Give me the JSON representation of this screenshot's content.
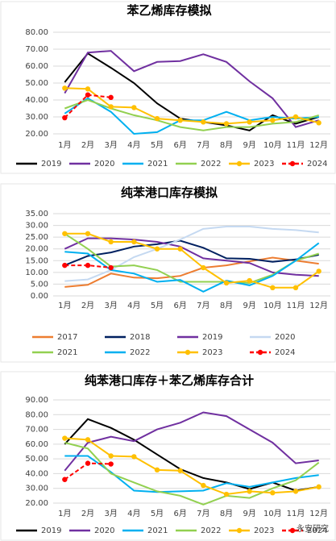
{
  "chart_data": [
    {
      "type": "line",
      "title": "苯乙烯库存模拟",
      "categories": [
        "1月",
        "2月",
        "3月",
        "4月",
        "5月",
        "6月",
        "7月",
        "8月",
        "9月",
        "10月",
        "11月",
        "12月"
      ],
      "ylim": [
        20,
        80
      ],
      "yticks": [
        {
          "value": 20,
          "label": "20.00"
        },
        {
          "value": 30,
          "label": "30.00"
        },
        {
          "value": 40,
          "label": "40.00"
        },
        {
          "value": 50,
          "label": "50.00"
        },
        {
          "value": 60,
          "label": "60.00"
        },
        {
          "value": 70,
          "label": "70.00"
        },
        {
          "value": 80,
          "label": "80.00"
        }
      ],
      "grid": true,
      "series": [
        {
          "name": "2019",
          "color": "#000000",
          "values": [
            50.5,
            67.5,
            59,
            50,
            38,
            29,
            27,
            25,
            22,
            31,
            26,
            30
          ]
        },
        {
          "name": "2020",
          "color": "#7030a0",
          "values": [
            44,
            68,
            69,
            57,
            62.5,
            63,
            67,
            62.5,
            51,
            41,
            24,
            28
          ]
        },
        {
          "name": "2021",
          "color": "#00b0f0",
          "values": [
            32,
            41,
            33,
            20,
            21,
            28,
            28,
            33,
            28,
            30,
            29,
            30
          ]
        },
        {
          "name": "2022",
          "color": "#92d050",
          "values": [
            35,
            40,
            35,
            31,
            28,
            24,
            22,
            24,
            24,
            26,
            27,
            31
          ]
        },
        {
          "name": "2023",
          "color": "#ffc000",
          "marker": "circle",
          "values": [
            47,
            46.5,
            36,
            35.5,
            29,
            28,
            27,
            26,
            27,
            28,
            30,
            26.5
          ]
        },
        {
          "name": "2024",
          "color": "#ff0000",
          "marker": "circle",
          "style": "dashed",
          "values": [
            29.5,
            43,
            41.5,
            null,
            null,
            null,
            null,
            null,
            null,
            null,
            null,
            null
          ]
        }
      ]
    },
    {
      "type": "line",
      "title": "纯苯港口库存模拟",
      "categories": [
        "1月",
        "2月",
        "3月",
        "4月",
        "5月",
        "6月",
        "7月",
        "8月",
        "9月",
        "10月",
        "11月",
        "12月"
      ],
      "ylim": [
        0,
        35
      ],
      "yticks": [
        {
          "value": 0,
          "label": "0.00"
        },
        {
          "value": 5,
          "label": "5.00"
        },
        {
          "value": 10,
          "label": "10.00"
        },
        {
          "value": 15,
          "label": "15.00"
        },
        {
          "value": 20,
          "label": "20.00"
        },
        {
          "value": 25,
          "label": "25.00"
        },
        {
          "value": 30,
          "label": "30.00"
        },
        {
          "value": 35,
          "label": "35.00"
        }
      ],
      "grid": true,
      "series": [
        {
          "name": "2017",
          "color": "#ed7d31",
          "values": [
            3.8,
            4.7,
            9.5,
            7.8,
            7.5,
            8.5,
            12,
            13,
            14.7,
            16.3,
            15,
            13.7
          ]
        },
        {
          "name": "2018",
          "color": "#002060",
          "values": [
            13,
            17,
            18.5,
            21,
            22,
            23.5,
            20.5,
            16,
            15.8,
            14.5,
            15.5,
            17.5
          ]
        },
        {
          "name": "2019",
          "color": "#7030a0",
          "values": [
            20,
            24.5,
            24.5,
            24,
            23,
            21,
            16,
            15,
            14,
            10,
            9,
            8.5
          ]
        },
        {
          "name": "2020",
          "color": "#c5d9f1",
          "values": [
            6.3,
            7,
            11,
            16.5,
            20,
            24,
            28.5,
            29.5,
            29.5,
            28.5,
            28,
            27
          ]
        },
        {
          "name": "2021",
          "color": "#92d050",
          "values": [
            26.5,
            20,
            12.5,
            13,
            11,
            6,
            6,
            6,
            5.5,
            9,
            15,
            18
          ]
        },
        {
          "name": "2022",
          "color": "#00b0f0",
          "values": [
            18.8,
            18,
            11,
            9.5,
            6,
            6.8,
            1.8,
            6.5,
            4.5,
            8.5,
            15,
            22.5
          ]
        },
        {
          "name": "2023",
          "color": "#ffc000",
          "marker": "circle",
          "values": [
            26.5,
            26.5,
            23,
            23,
            20,
            20,
            12,
            5.5,
            6.5,
            3.5,
            3.5,
            10.5
          ]
        },
        {
          "name": "2024",
          "color": "#ff0000",
          "marker": "circle",
          "style": "dashed",
          "values": [
            13,
            13,
            12,
            null,
            null,
            null,
            null,
            null,
            null,
            null,
            null,
            null
          ]
        }
      ]
    },
    {
      "type": "line",
      "title": "纯苯港口库存＋苯乙烯库存合计",
      "categories": [
        "1月",
        "2月",
        "3月",
        "4月",
        "5月",
        "6月",
        "7月",
        "8月",
        "9月",
        "10月",
        "11月",
        "12月"
      ],
      "ylim": [
        20,
        90
      ],
      "yticks": [
        {
          "value": 20,
          "label": "20.00"
        },
        {
          "value": 30,
          "label": "30.00"
        },
        {
          "value": 40,
          "label": "40.00"
        },
        {
          "value": 50,
          "label": "50.00"
        },
        {
          "value": 60,
          "label": "60.00"
        },
        {
          "value": 70,
          "label": "70.00"
        },
        {
          "value": 80,
          "label": "80.00"
        },
        {
          "value": 90,
          "label": "90.00"
        }
      ],
      "grid": true,
      "watermark": "永安研究",
      "series": [
        {
          "name": "2019",
          "color": "#000000",
          "values": [
            60,
            77,
            71,
            63,
            53,
            43,
            37,
            34,
            29.5,
            34,
            28.5,
            31
          ]
        },
        {
          "name": "2020",
          "color": "#7030a0",
          "values": [
            42,
            61,
            65,
            62,
            70,
            74.5,
            81.5,
            79,
            70,
            61,
            47,
            49
          ]
        },
        {
          "name": "2021",
          "color": "#00b0f0",
          "values": [
            52,
            52,
            41,
            28.5,
            27.5,
            28,
            28.5,
            33.5,
            31,
            34,
            37,
            39
          ]
        },
        {
          "name": "2022",
          "color": "#92d050",
          "values": [
            61,
            57,
            40,
            34,
            28,
            25,
            19,
            25,
            23.5,
            30,
            35.5,
            47.5
          ]
        },
        {
          "name": "2023",
          "color": "#ffc000",
          "marker": "circle",
          "values": [
            64,
            63,
            52,
            51.5,
            42.5,
            42,
            32,
            26,
            28,
            27,
            28,
            31
          ]
        },
        {
          "name": "2024",
          "color": "#ff0000",
          "marker": "circle",
          "style": "dashed",
          "values": [
            36,
            47,
            46.5,
            null,
            null,
            null,
            null,
            null,
            null,
            null,
            null,
            null
          ]
        }
      ]
    }
  ]
}
